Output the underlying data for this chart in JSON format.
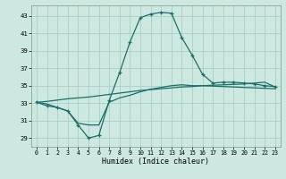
{
  "xlabel": "Humidex (Indice chaleur)",
  "background_color": "#cce8e0",
  "grid_color": "#aacfc8",
  "line_color": "#1a7068",
  "xlim": [
    -0.5,
    23.5
  ],
  "ylim": [
    28.0,
    44.2
  ],
  "xticks": [
    0,
    1,
    2,
    3,
    4,
    5,
    6,
    7,
    8,
    9,
    10,
    11,
    12,
    13,
    14,
    15,
    16,
    17,
    18,
    19,
    20,
    21,
    22,
    23
  ],
  "yticks": [
    29,
    31,
    33,
    35,
    37,
    39,
    41,
    43
  ],
  "curve1_x": [
    0,
    1,
    2,
    3,
    4,
    5,
    6,
    7,
    8,
    9,
    10,
    11,
    12,
    13,
    14,
    15,
    16,
    17,
    18,
    19,
    20,
    21,
    22,
    23
  ],
  "curve1_y": [
    33.1,
    32.7,
    32.5,
    32.1,
    30.5,
    29.0,
    29.3,
    33.3,
    36.5,
    40.0,
    42.8,
    43.2,
    43.4,
    43.3,
    40.5,
    38.5,
    36.3,
    35.3,
    35.4,
    35.4,
    35.3,
    35.2,
    35.0,
    34.9
  ],
  "curve2_x": [
    0,
    1,
    2,
    3,
    4,
    5,
    6,
    7,
    8,
    9,
    10,
    11,
    12,
    13,
    14,
    15,
    16,
    17,
    18,
    19,
    20,
    21,
    22,
    23
  ],
  "curve2_y": [
    33.1,
    33.2,
    33.35,
    33.5,
    33.6,
    33.7,
    33.85,
    34.0,
    34.15,
    34.3,
    34.45,
    34.55,
    34.65,
    34.75,
    34.85,
    34.9,
    35.0,
    35.05,
    35.1,
    35.15,
    35.2,
    35.3,
    35.4,
    34.85
  ],
  "curve3_x": [
    0,
    1,
    2,
    3,
    4,
    5,
    6,
    7,
    8,
    9,
    10,
    11,
    12,
    13,
    14,
    15,
    16,
    17,
    18,
    19,
    20,
    21,
    22,
    23
  ],
  "curve3_y": [
    33.1,
    32.9,
    32.5,
    32.1,
    30.7,
    30.5,
    30.5,
    33.1,
    33.6,
    33.9,
    34.3,
    34.6,
    34.8,
    35.0,
    35.1,
    35.0,
    35.0,
    34.95,
    34.9,
    34.85,
    34.8,
    34.75,
    34.7,
    34.65
  ]
}
